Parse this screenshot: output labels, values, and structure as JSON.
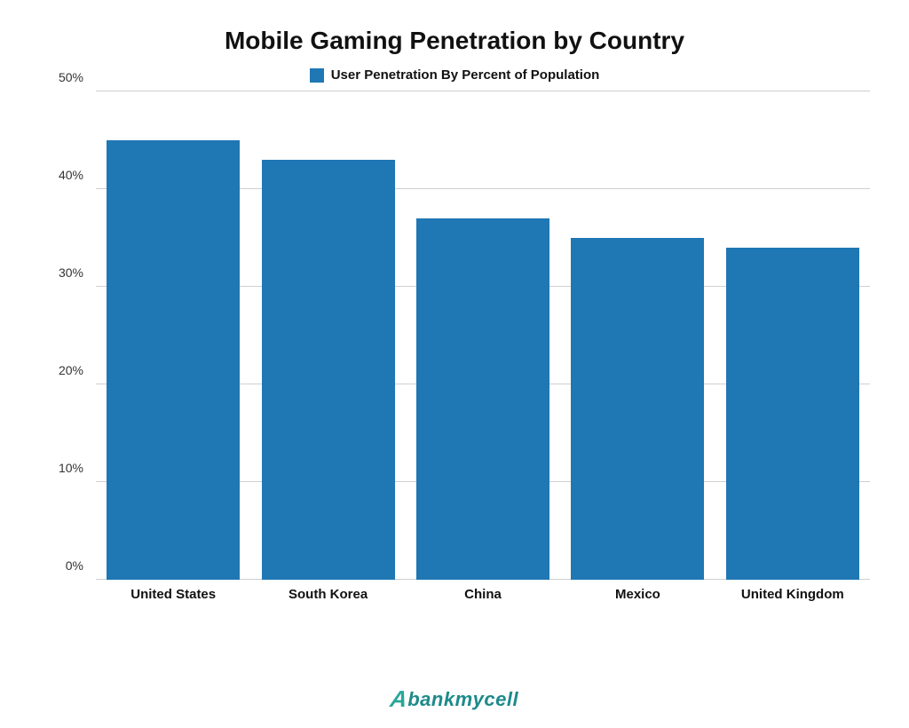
{
  "chart": {
    "type": "bar",
    "title": "Mobile Gaming Penetration by Country",
    "title_fontsize": 28,
    "title_color": "#111111",
    "legend": {
      "label": "User Penetration By Percent of Population",
      "swatch_color": "#1f77b4",
      "fontsize": 15,
      "font_weight": 700
    },
    "categories": [
      "United States",
      "South Korea",
      "China",
      "Mexico",
      "United Kingdom"
    ],
    "values": [
      45,
      43,
      37,
      35,
      34
    ],
    "bar_colors": [
      "#1f77b4",
      "#1f77b4",
      "#1f77b4",
      "#1f77b4",
      "#1f77b4"
    ],
    "bar_width": 0.86,
    "y_axis": {
      "min": 0,
      "max": 50,
      "tick_step": 10,
      "ticks": [
        "0%",
        "10%",
        "20%",
        "30%",
        "40%",
        "50%"
      ],
      "label_fontsize": 14,
      "label_color": "#333333"
    },
    "x_axis": {
      "label_fontsize": 15,
      "label_font_weight": 700,
      "label_color": "#111111"
    },
    "grid": {
      "color": "#cfcfcf",
      "show": true
    },
    "background_color": "#ffffff"
  },
  "logo": {
    "text": "bankmycell",
    "accent_glyph": "A",
    "color": "#1e8a8a",
    "accent_color": "#2aa79b",
    "fontsize": 22
  }
}
